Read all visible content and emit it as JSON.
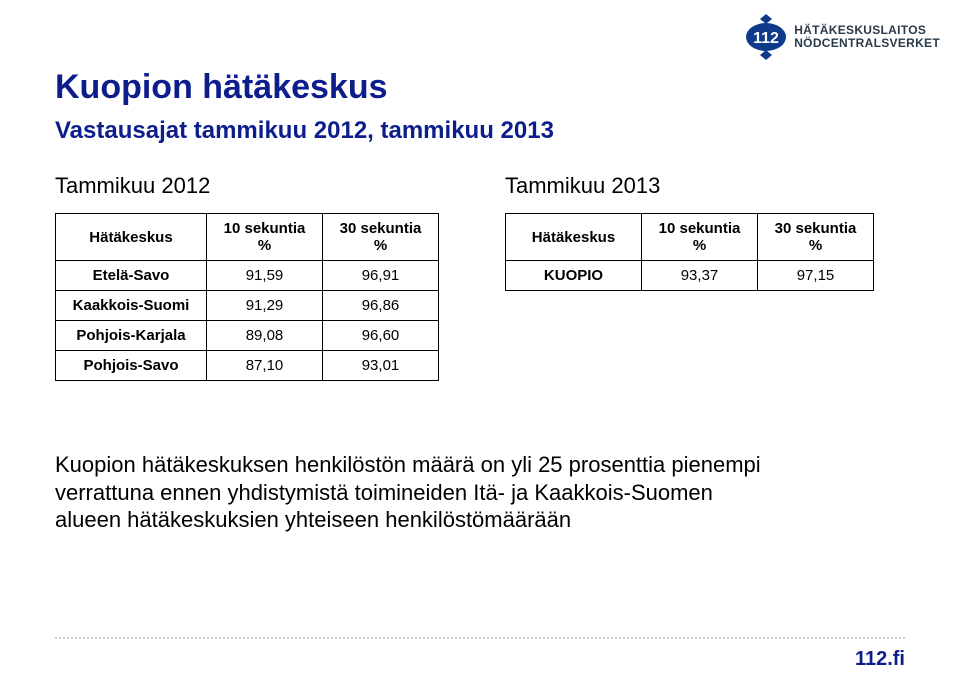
{
  "colors": {
    "title_blue": "#0d1e8c",
    "logo_blue": "#0f3a8a",
    "logo_text": "#2a3a48",
    "dot_gray": "#cfcfcf",
    "footer_blue": "#0d1e8c",
    "black": "#000000"
  },
  "logo": {
    "number": "112",
    "line1": "HÄTÄKESKUSLAITOS",
    "line2": "NÖDCENTRALSVERKET"
  },
  "title": "Kuopion hätäkeskus",
  "subtitle": "Vastausajat tammikuu 2012, tammikuu 2013",
  "table1": {
    "label": "Tammikuu 2012",
    "headers": [
      "Hätäkeskus",
      "10 sekuntia\n%",
      "30 sekuntia\n%"
    ],
    "rows": [
      [
        "Etelä-Savo",
        "91,59",
        "96,91"
      ],
      [
        "Kaakkois-Suomi",
        "91,29",
        "96,86"
      ],
      [
        "Pohjois-Karjala",
        "89,08",
        "96,60"
      ],
      [
        "Pohjois-Savo",
        "87,10",
        "93,01"
      ]
    ]
  },
  "table2": {
    "label": "Tammikuu 2013",
    "headers": [
      "Hätäkeskus",
      "10 sekuntia\n%",
      "30 sekuntia\n%"
    ],
    "rows": [
      [
        "KUOPIO",
        "93,37",
        "97,15"
      ]
    ]
  },
  "paragraph": "Kuopion hätäkeskuksen henkilöstön määrä on yli 25 prosenttia pienempi verrattuna ennen yhdistymistä toimineiden Itä- ja Kaakkois-Suomen alueen hätäkeskuksien yhteiseen henkilöstömäärään",
  "footer": "112.fi"
}
